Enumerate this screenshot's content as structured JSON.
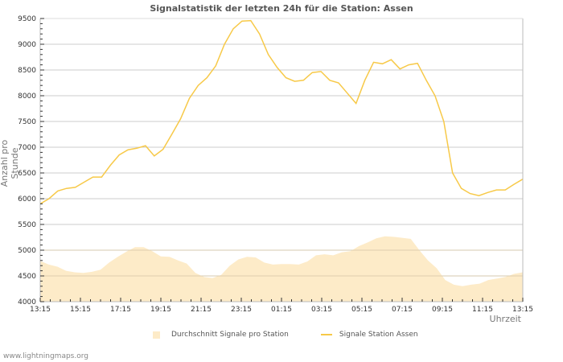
{
  "title": "Signalstatistik der letzten 24h für die Station: Assen",
  "ylabel": "Anzahl pro Stunde",
  "xlabel": "Uhrzeit",
  "legend": {
    "area_label": "Durchschnitt Signale pro Station",
    "line_label": "Signale Station Assen"
  },
  "footer": "www.lightningmaps.org",
  "colors": {
    "line": "#f7c948",
    "area": "#fdebc8",
    "grid": "#cccccc",
    "axis": "#bbbbbb"
  },
  "chart_data": {
    "type": "line",
    "title": "Signalstatistik der letzten 24h für die Station: Assen",
    "xlabel": "Uhrzeit",
    "ylabel": "Anzahl pro Stunde",
    "ylim": [
      4000,
      9500
    ],
    "yticks": [
      4000,
      4500,
      5000,
      5500,
      6000,
      6500,
      7000,
      7500,
      8000,
      8500,
      9000,
      9500
    ],
    "xticks": [
      "13:15",
      "15:15",
      "17:15",
      "19:15",
      "21:15",
      "23:15",
      "01:15",
      "03:15",
      "05:15",
      "07:15",
      "09:15",
      "11:15",
      "13:15"
    ],
    "grid": true,
    "legend_position": "bottom",
    "x_hours": [
      0,
      0.5,
      1,
      1.5,
      2,
      2.5,
      3,
      3.5,
      4,
      4.5,
      5,
      5.5,
      6,
      6.5,
      7,
      7.5,
      8,
      8.5,
      9,
      9.5,
      10,
      10.5,
      11,
      11.5,
      12,
      12.5,
      13,
      13.5,
      14,
      14.5,
      15,
      15.5,
      16,
      16.5,
      17,
      17.5,
      18,
      18.5,
      19,
      19.5,
      20,
      20.5,
      21,
      21.5,
      22,
      22.5,
      23,
      23.5,
      24
    ],
    "series": [
      {
        "name": "Signale Station Assen",
        "type": "line",
        "values": [
          5900,
          6000,
          6150,
          6200,
          6220,
          6320,
          6420,
          6420,
          6650,
          6850,
          6950,
          6980,
          7030,
          6830,
          6960,
          7250,
          7550,
          7950,
          8200,
          8350,
          8580,
          9000,
          9300,
          9450,
          9460,
          9200,
          8800,
          8550,
          8350,
          8280,
          8300,
          8450,
          8470,
          8300,
          8250,
          8050,
          7850,
          8300,
          8650,
          8620,
          8700,
          8520,
          8600,
          8630,
          8300,
          8000,
          7500,
          6500,
          6200
        ],
        "extra_tail": [
          6100,
          6060,
          6120,
          6170,
          6170,
          6280,
          6380
        ]
      },
      {
        "name": "Durchschnitt Signale pro Station",
        "type": "area",
        "values": [
          4790,
          4720,
          4680,
          4600,
          4570,
          4560,
          4580,
          4620,
          4760,
          4870,
          4970,
          5060,
          5060,
          4980,
          4880,
          4870,
          4800,
          4740,
          4560,
          4480,
          4460,
          4520,
          4700,
          4820,
          4870,
          4860,
          4760,
          4720,
          4730,
          4730,
          4720,
          4780,
          4900,
          4920,
          4900,
          4960,
          4980,
          5080,
          5150,
          5230,
          5270,
          5260,
          5240,
          5220,
          5000,
          4800,
          4650,
          4420,
          4330
        ],
        "extra_tail": [
          4300,
          4330,
          4350,
          4420,
          4450,
          4480,
          4540,
          4570
        ]
      }
    ]
  }
}
